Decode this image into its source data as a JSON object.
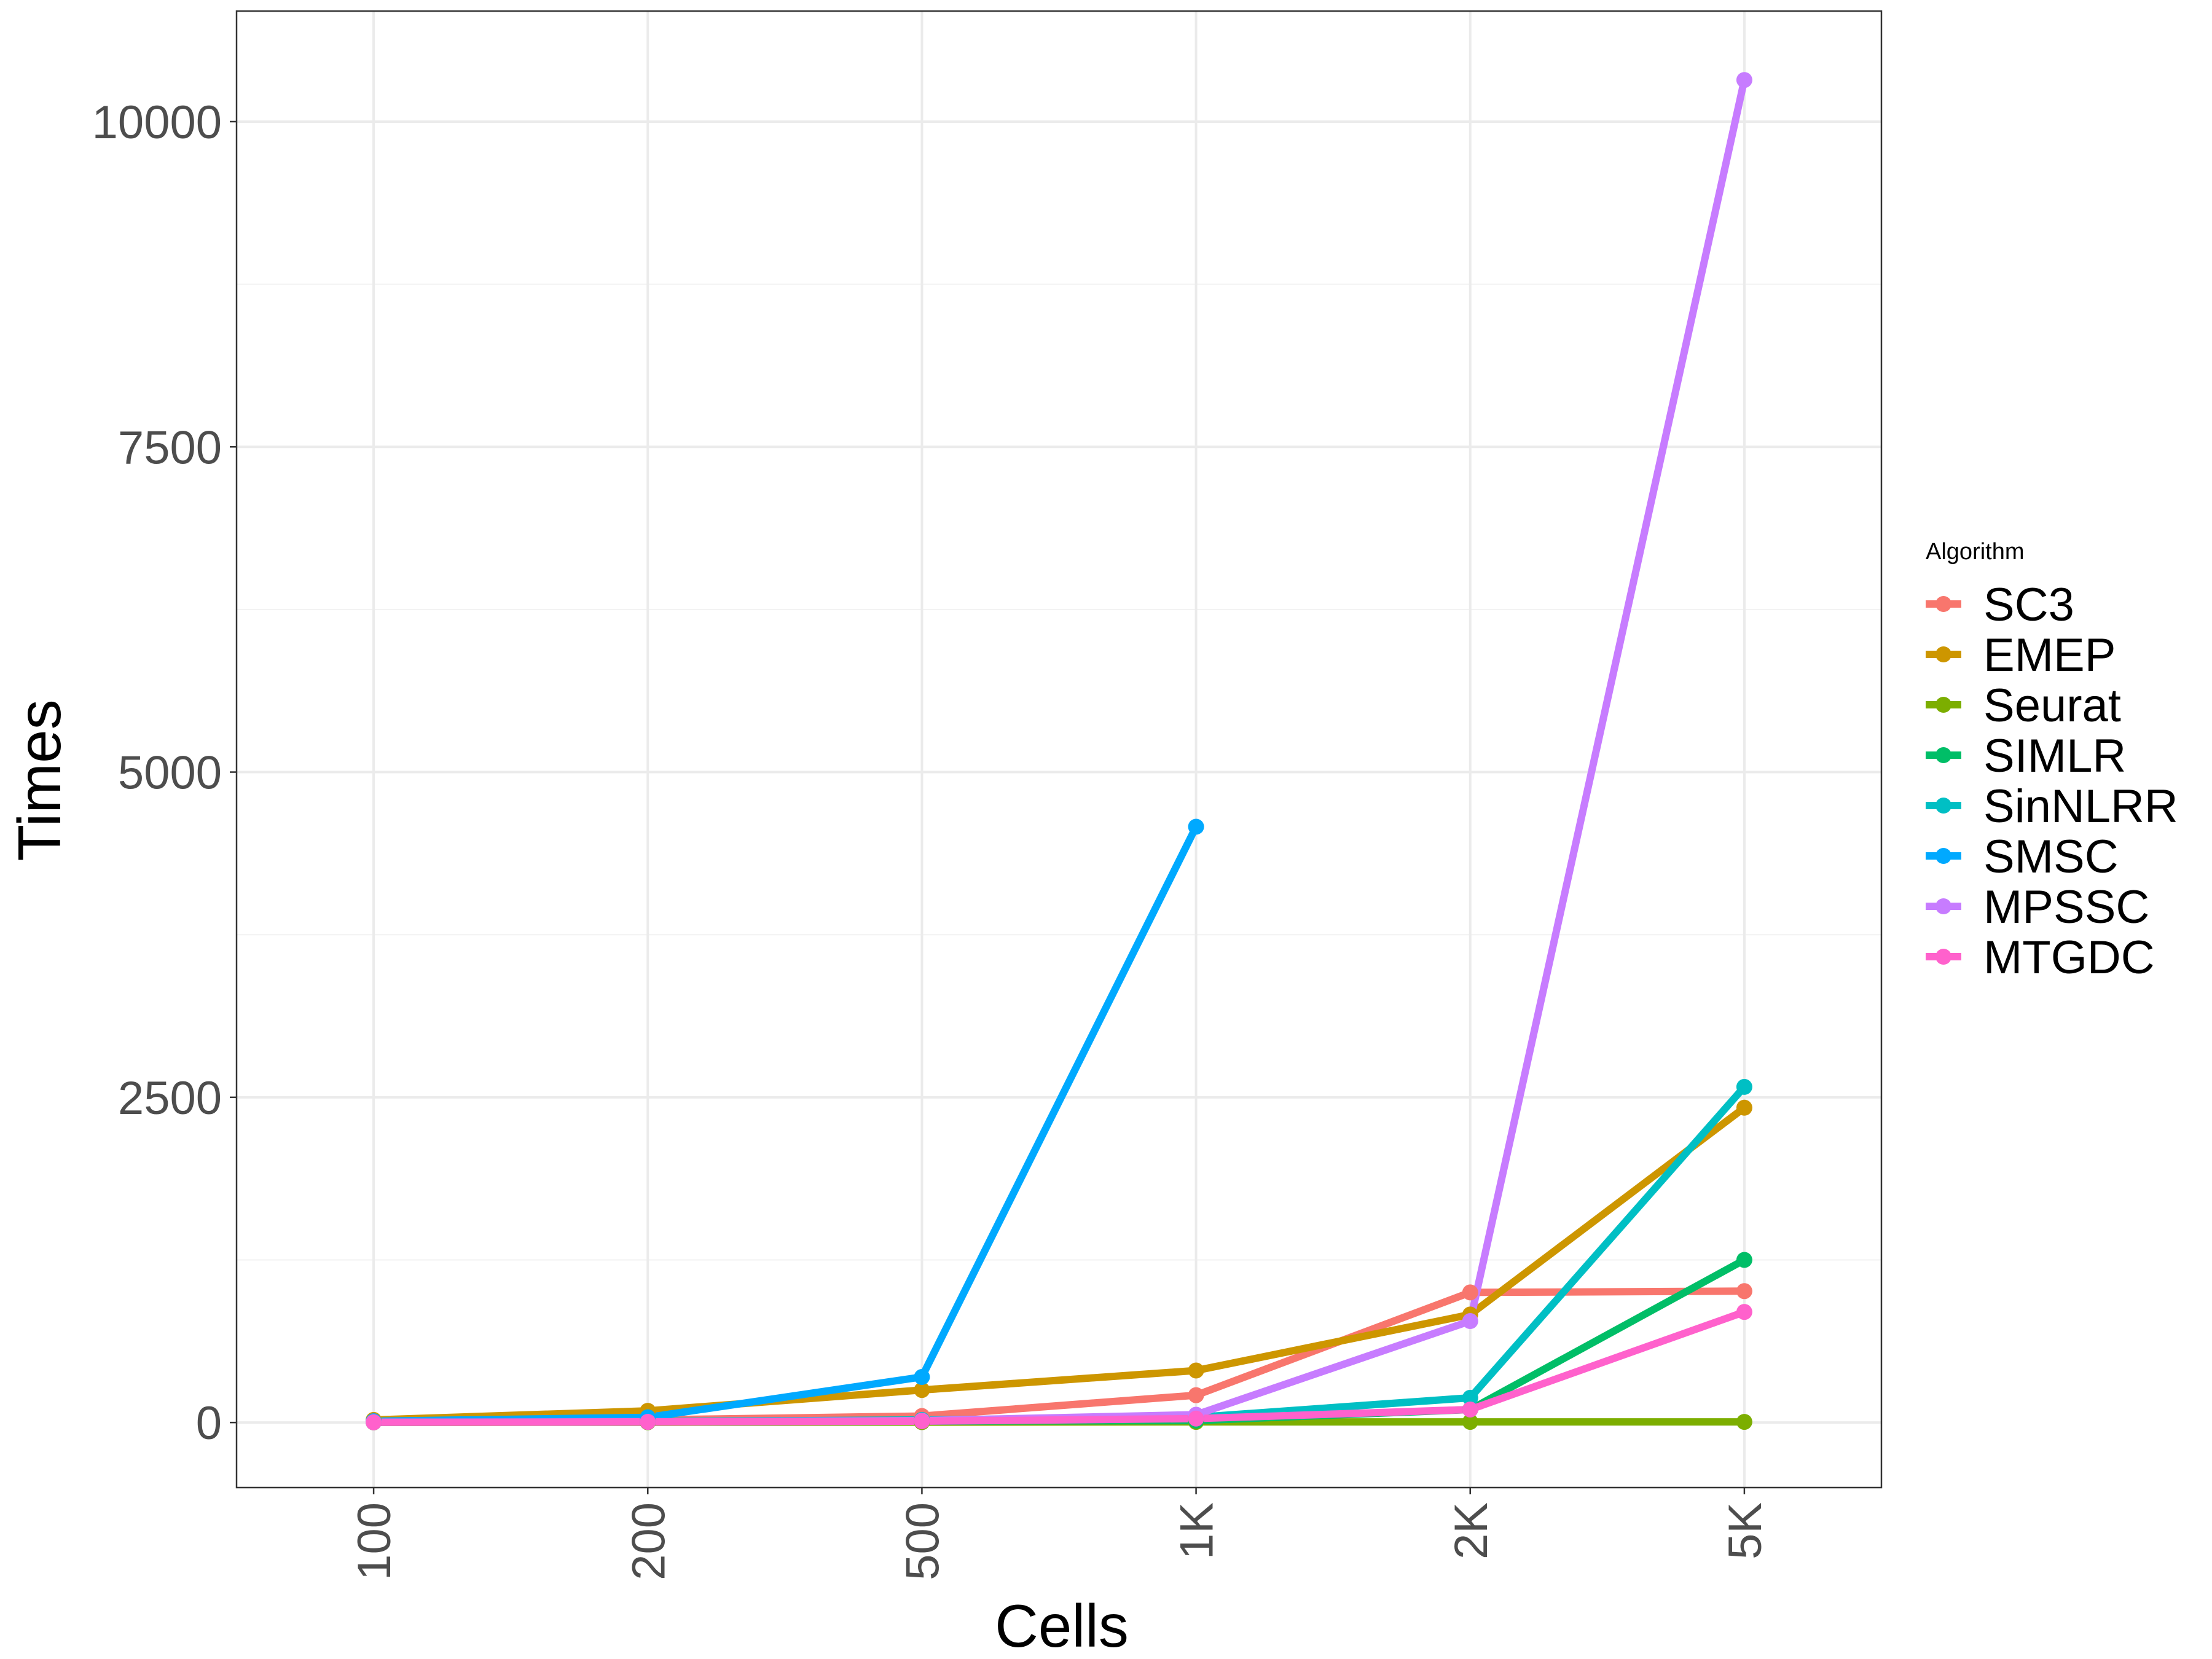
{
  "chart_data": {
    "type": "line",
    "xlabel": "Cells",
    "ylabel": "Times",
    "categories": [
      "100",
      "200",
      "500",
      "1K",
      "2K",
      "5K"
    ],
    "yticks": [
      0,
      2500,
      5000,
      7500,
      10000
    ],
    "ylim": [
      -500,
      10850
    ],
    "grid": true,
    "legend": {
      "title": "Algorithm",
      "position": "right"
    },
    "series": [
      {
        "name": "SC3",
        "color": "#F8766D",
        "values": [
          5,
          20,
          50,
          210,
          1000,
          1010
        ]
      },
      {
        "name": "EMEP",
        "color": "#CD9600",
        "values": [
          20,
          90,
          250,
          400,
          830,
          2420
        ]
      },
      {
        "name": "Seurat",
        "color": "#7CAE00",
        "values": [
          1,
          2,
          3,
          5,
          5,
          5
        ]
      },
      {
        "name": "SIMLR",
        "color": "#00BE67",
        "values": [
          2,
          5,
          10,
          15,
          100,
          1250
        ]
      },
      {
        "name": "SinNLRR",
        "color": "#00BFC4",
        "values": [
          3,
          8,
          20,
          40,
          190,
          2580
        ]
      },
      {
        "name": "SMSC",
        "color": "#00A9FF",
        "values": [
          10,
          40,
          350,
          4580,
          null,
          null
        ]
      },
      {
        "name": "MPSSC",
        "color": "#C77CFF",
        "values": [
          2,
          5,
          15,
          60,
          780,
          10320
        ]
      },
      {
        "name": "MTGDC",
        "color": "#FF61CC",
        "values": [
          2,
          5,
          10,
          30,
          100,
          850
        ]
      }
    ]
  }
}
